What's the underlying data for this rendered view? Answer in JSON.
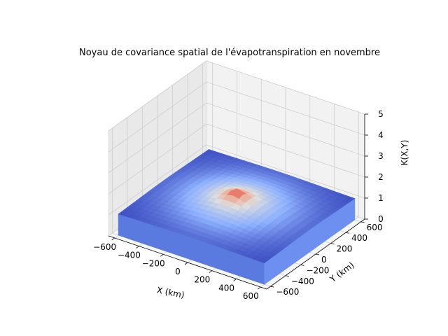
{
  "chart_data": {
    "type": "surface3d",
    "title": "Noyau de covariance spatial de l'évapotranspiration en novembre",
    "xlabel": "X (km)",
    "ylabel": "Y (km)",
    "zlabel": "K(X,Y)",
    "xlim": [
      -650,
      650
    ],
    "ylim": [
      -650,
      650
    ],
    "zlim": [
      0,
      5
    ],
    "x_ticks": [
      -600,
      -400,
      -200,
      0,
      200,
      400,
      600
    ],
    "x_tick_labels": [
      "−600",
      "−400",
      "−200",
      "0",
      "200",
      "400",
      "600"
    ],
    "y_ticks": [
      -600,
      -400,
      -200,
      0,
      200,
      400,
      600
    ],
    "y_tick_labels": [
      "−600",
      "−400",
      "−200",
      "0",
      "200",
      "400",
      "600"
    ],
    "z_ticks": [
      0,
      1,
      2,
      3,
      4,
      5
    ],
    "z_tick_labels": [
      "0",
      "1",
      "2",
      "3",
      "4",
      "5"
    ],
    "colormap": "coolwarm",
    "grid": true,
    "surface": {
      "extent": [
        -600,
        600
      ],
      "edge_value": 1.0,
      "peak_value": 1.85,
      "peak_x": 0,
      "peak_y": 0
    }
  }
}
